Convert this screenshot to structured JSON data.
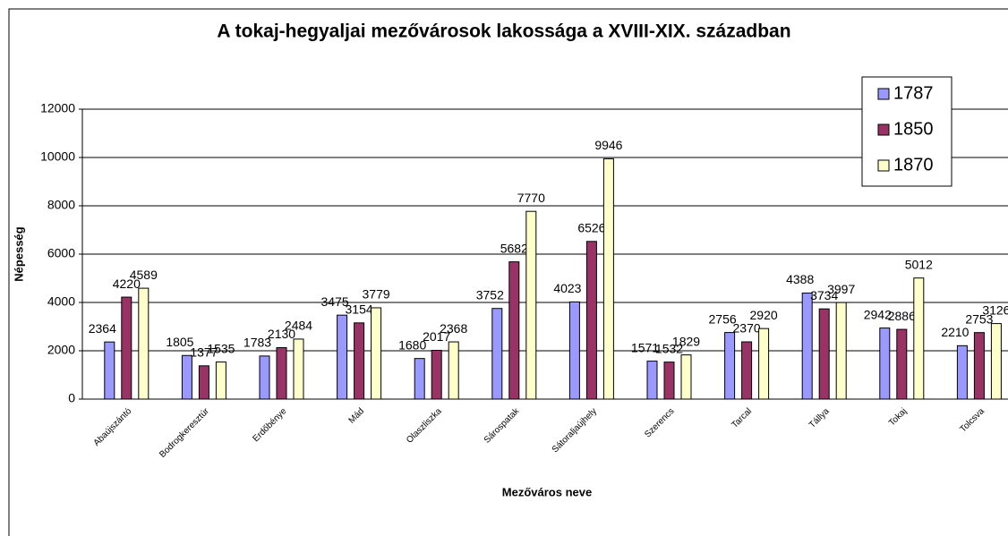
{
  "chart_data": {
    "type": "bar",
    "title": "A tokaj-hegyaljai mezővárosok lakossága a XVIII-XIX. században",
    "x_label": "Mezőváros neve",
    "y_label": "Népesség",
    "categories": [
      "Abaújszántó",
      "Bodrogkeresztúr",
      "Erdőbénye",
      "Mád",
      "Olaszliszka",
      "Sárospatak",
      "Sátoraljaújhely",
      "Szerencs",
      "Tarcal",
      "Tállya",
      "Tokaj",
      "Tolcsva"
    ],
    "series": [
      {
        "name": "1787",
        "color": "#9999ff",
        "values": [
          2364,
          1805,
          1783,
          3475,
          1680,
          3752,
          4023,
          1571,
          2756,
          4388,
          2942,
          2210
        ]
      },
      {
        "name": "1850",
        "color": "#993366",
        "values": [
          4220,
          1377,
          2130,
          3154,
          2017,
          5682,
          6526,
          1532,
          2370,
          3734,
          2886,
          2753
        ]
      },
      {
        "name": "1870",
        "color": "#ffffcc",
        "values": [
          4589,
          1535,
          2484,
          3779,
          2368,
          7770,
          9946,
          1829,
          2920,
          3997,
          5012,
          3126
        ]
      }
    ],
    "ylim": [
      0,
      12000
    ],
    "yticks": [
      0,
      2000,
      4000,
      6000,
      8000,
      10000,
      12000
    ],
    "grid": true,
    "legend": "top-right"
  }
}
